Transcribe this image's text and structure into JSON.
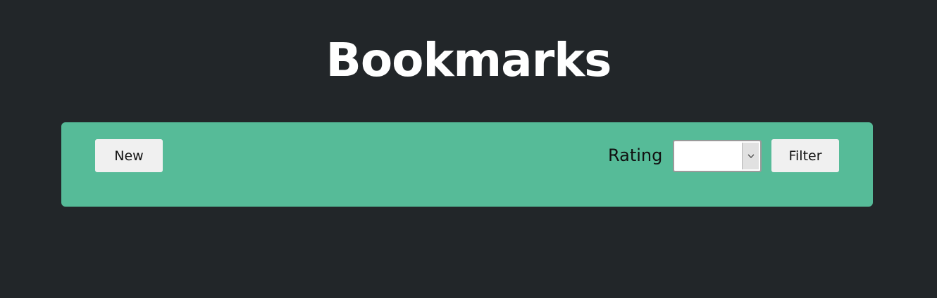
{
  "header": {
    "title": "Bookmarks"
  },
  "toolbar": {
    "new_label": "New",
    "rating_label": "Rating",
    "rating_select": {
      "selected_value": "",
      "icon": "chevron-down-icon"
    },
    "filter_label": "Filter"
  },
  "colors": {
    "background": "#222629",
    "toolbar": "#56bb98",
    "button": "#f0f0f0",
    "title": "#ffffff"
  }
}
